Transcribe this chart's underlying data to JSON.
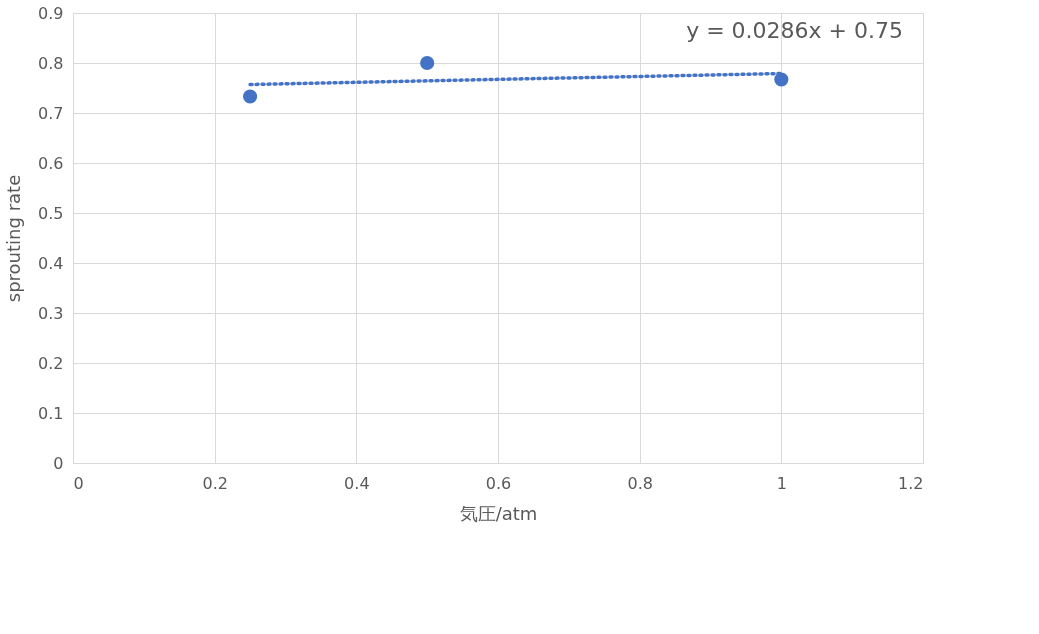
{
  "chart_data": {
    "type": "scatter",
    "xlabel": "気圧/atm",
    "ylabel": "sprouting rate",
    "xlim": [
      0,
      1.2
    ],
    "xticks": [
      0,
      0.2,
      0.4,
      0.6,
      0.8,
      1,
      1.2
    ],
    "ylim": [
      0,
      0.9
    ],
    "yticks": [
      0,
      0.1,
      0.2,
      0.3,
      0.4,
      0.5,
      0.6,
      0.7,
      0.8,
      0.9
    ],
    "grid": true,
    "marker": "circle",
    "x": [
      0.25,
      0.5,
      1
    ],
    "series": [
      {
        "color": "#4472c4",
        "values": [
          0.733,
          0.8,
          0.767
        ]
      },
      {
        "type": "line",
        "color": "#4472c4",
        "line_style": "dotted",
        "marker": "none",
        "x": [
          0.25,
          1
        ],
        "values": [
          0.757,
          0.779
        ]
      }
    ],
    "annotations": [
      "y = 0.0286x + 0.75"
    ]
  }
}
